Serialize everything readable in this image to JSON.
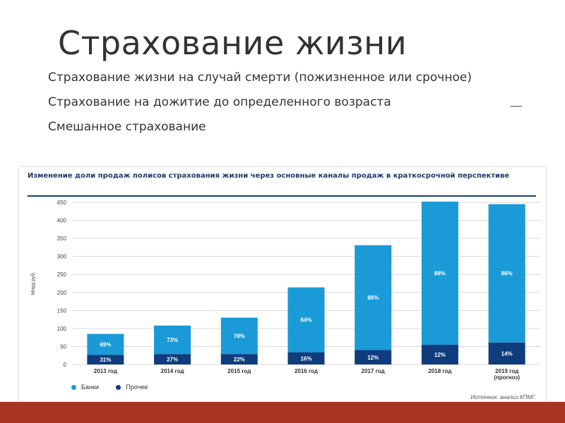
{
  "slide": {
    "title": "Страхование жизни",
    "bullets": [
      "Страхование жизни на случай смерти (пожизненное или срочное)",
      "Страхование на дожитие до определенного возраста",
      "Смешанное страхование"
    ],
    "dash": "—"
  },
  "colors": {
    "banks": "#1a9ad6",
    "other": "#0f3c7d",
    "bottom_bar": "#a83522"
  },
  "chart_data": {
    "type": "bar",
    "stacked": true,
    "title": "Изменение доли продаж полисов страхования жизни через основные каналы продаж в краткосрочной перспективе",
    "ylabel": "Млрд руб.",
    "ylim": [
      0,
      450
    ],
    "yticks": [
      0,
      50,
      100,
      150,
      200,
      250,
      300,
      350,
      400,
      450
    ],
    "categories": [
      "2013 год",
      "2014 год",
      "2015 год",
      "2016 год",
      "2017 год",
      "2018 год",
      "2019 год (прогноз)"
    ],
    "series": [
      {
        "name": "Прочее",
        "color": "#0f3c7d",
        "values": [
          27,
          29,
          29,
          34,
          40,
          55,
          61
        ],
        "labels": [
          "31%",
          "27%",
          "22%",
          "16%",
          "12%",
          "12%",
          "14%"
        ]
      },
      {
        "name": "Банки",
        "color": "#1a9ad6",
        "values": [
          58,
          79,
          101,
          180,
          291,
          397,
          384
        ],
        "labels": [
          "69%",
          "73%",
          "78%",
          "84%",
          "88%",
          "88%",
          "86%"
        ]
      }
    ],
    "legend_position": "bottom-left",
    "grid": true,
    "source": "Источник: анализ КПМГ."
  }
}
